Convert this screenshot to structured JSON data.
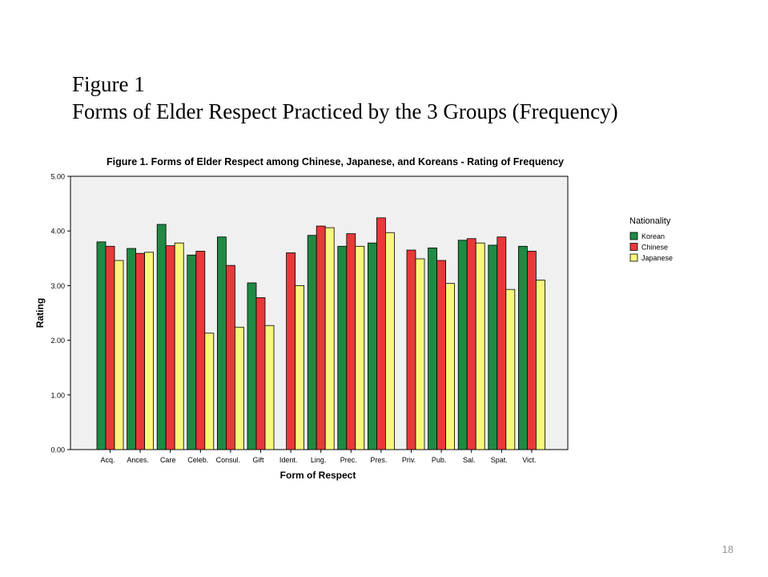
{
  "slide": {
    "heading_line1": "Figure 1",
    "heading_line2": "Forms of Elder Respect Practiced by the 3 Groups (Frequency)",
    "page_number": "18"
  },
  "chart_data": {
    "type": "bar",
    "title": "Figure 1. Forms of Elder Respect among Chinese, Japanese, and Koreans - Rating of Frequency",
    "xlabel": "Form of Respect",
    "ylabel": "Rating",
    "ylim": [
      0,
      5
    ],
    "yticks": [
      "0.00",
      "1.00",
      "2.00",
      "3.00",
      "4.00",
      "5.00"
    ],
    "categories": [
      "Acq.",
      "Ances.",
      "Care",
      "Celeb.",
      "Consul.",
      "Gift",
      "Ident.",
      "Ling.",
      "Prec.",
      "Pres.",
      "Priv.",
      "Pub.",
      "Sal.",
      "Spat.",
      "Vict."
    ],
    "legend_title": "Nationality",
    "legend_position": "right",
    "series": [
      {
        "name": "Korean",
        "color": "#1f8a44",
        "values": [
          3.8,
          3.68,
          4.12,
          3.56,
          3.89,
          3.05,
          null,
          3.92,
          3.72,
          3.78,
          null,
          3.69,
          3.83,
          3.74,
          3.72
        ]
      },
      {
        "name": "Chinese",
        "color": "#e8383a",
        "values": [
          3.72,
          3.59,
          3.73,
          3.63,
          3.37,
          2.78,
          3.6,
          4.09,
          3.95,
          4.24,
          3.65,
          3.46,
          3.86,
          3.89,
          3.63
        ]
      },
      {
        "name": "Japanese",
        "color": "#f7f77b",
        "values": [
          3.46,
          3.61,
          3.78,
          2.13,
          2.24,
          2.27,
          3.0,
          4.06,
          3.72,
          3.97,
          3.49,
          3.04,
          3.78,
          2.93,
          3.1
        ]
      }
    ]
  }
}
